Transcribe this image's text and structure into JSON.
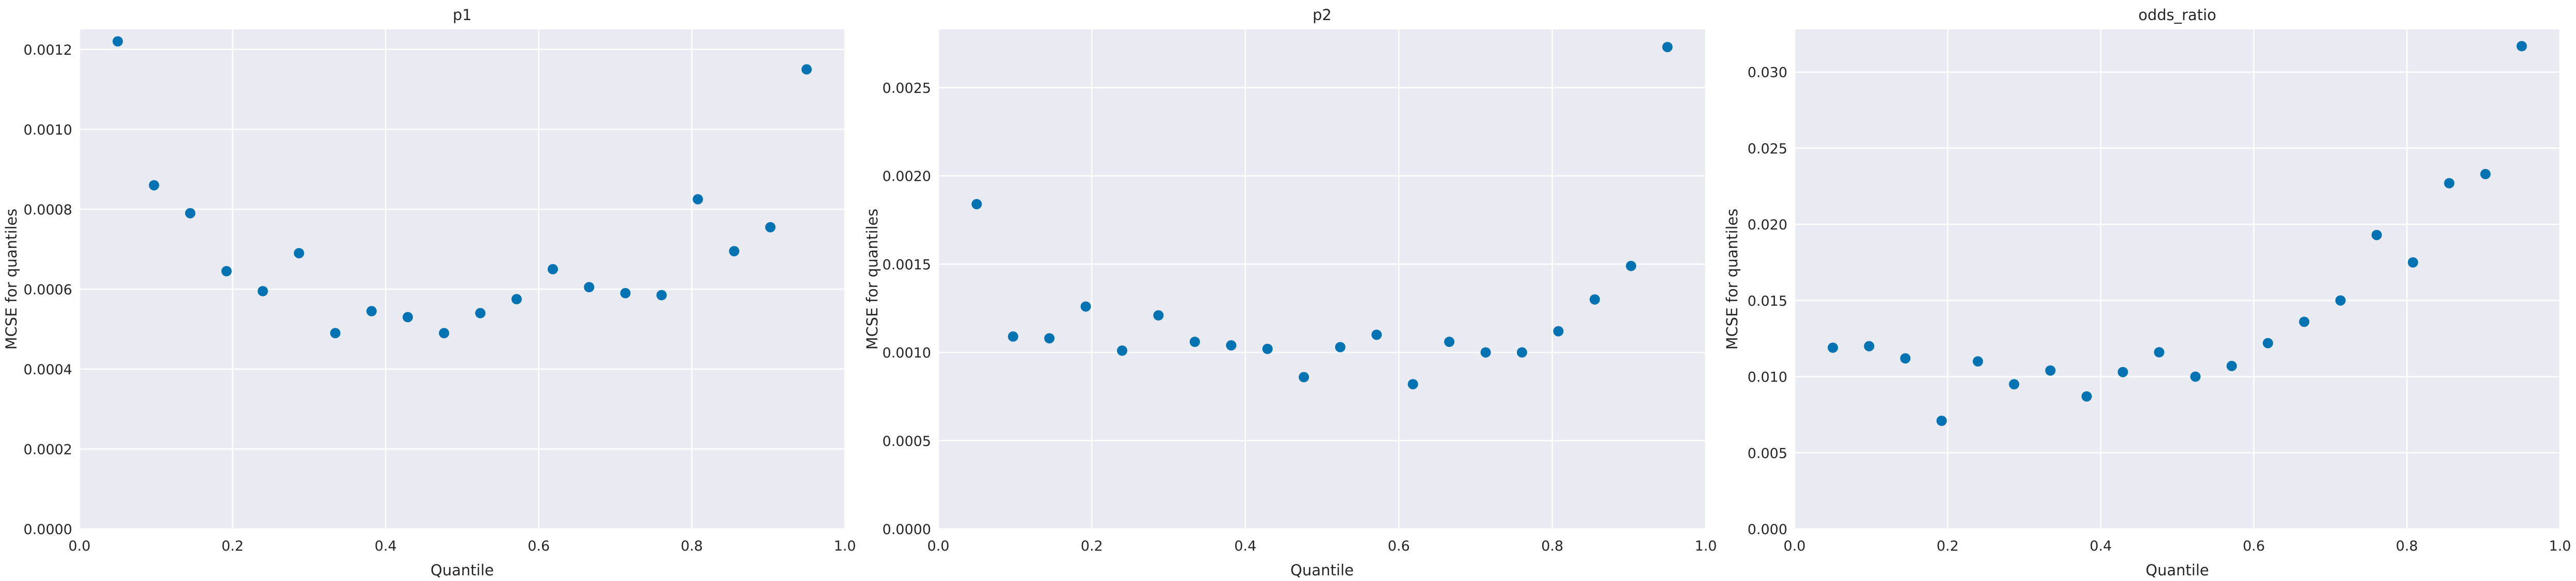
{
  "colors": {
    "axes_background": "#eaeaf2",
    "grid": "#ffffff",
    "marker": "#0173b2",
    "text": "#262626"
  },
  "chart_data": [
    {
      "type": "scatter",
      "title": "p1",
      "xlabel": "Quantile",
      "ylabel": "MCSE for quantiles",
      "xlim": [
        0,
        1
      ],
      "ylim": [
        0,
        0.00125
      ],
      "grid": true,
      "xticks": [
        0,
        0.2,
        0.4,
        0.6,
        0.8,
        1.0
      ],
      "xtick_labels": [
        "0.0",
        "0.2",
        "0.4",
        "0.6",
        "0.8",
        "1.0"
      ],
      "yticks": [
        0,
        0.0002,
        0.0004,
        0.0006,
        0.0008,
        0.001,
        0.0012
      ],
      "ytick_labels": [
        "0.0000",
        "0.0002",
        "0.0004",
        "0.0006",
        "0.0008",
        "0.0010",
        "0.0012"
      ],
      "x": [
        0.05,
        0.0974,
        0.1447,
        0.1921,
        0.2395,
        0.2868,
        0.3342,
        0.3816,
        0.4289,
        0.4763,
        0.5237,
        0.5711,
        0.6184,
        0.6658,
        0.7132,
        0.7605,
        0.8079,
        0.8553,
        0.9026,
        0.95
      ],
      "y": [
        0.00122,
        0.00086,
        0.00079,
        0.000645,
        0.000595,
        0.00069,
        0.00049,
        0.000545,
        0.00053,
        0.00049,
        0.00054,
        0.000575,
        0.00065,
        0.000605,
        0.00059,
        0.000585,
        0.000825,
        0.000695,
        0.000755,
        0.00115
      ]
    },
    {
      "type": "scatter",
      "title": "p2",
      "xlabel": "Quantile",
      "ylabel": "MCSE for quantiles",
      "xlim": [
        0,
        1
      ],
      "ylim": [
        0,
        0.00283
      ],
      "grid": true,
      "xticks": [
        0,
        0.2,
        0.4,
        0.6,
        0.8,
        1.0
      ],
      "xtick_labels": [
        "0.0",
        "0.2",
        "0.4",
        "0.6",
        "0.8",
        "1.0"
      ],
      "yticks": [
        0,
        0.0005,
        0.001,
        0.0015,
        0.002,
        0.0025
      ],
      "ytick_labels": [
        "0.0000",
        "0.0005",
        "0.0010",
        "0.0015",
        "0.0020",
        "0.0025"
      ],
      "x": [
        0.05,
        0.0974,
        0.1447,
        0.1921,
        0.2395,
        0.2868,
        0.3342,
        0.3816,
        0.4289,
        0.4763,
        0.5237,
        0.5711,
        0.6184,
        0.6658,
        0.7132,
        0.7605,
        0.8079,
        0.8553,
        0.9026,
        0.95
      ],
      "y": [
        0.00184,
        0.00109,
        0.00108,
        0.00126,
        0.00101,
        0.00121,
        0.00106,
        0.00104,
        0.00102,
        0.00086,
        0.00103,
        0.0011,
        0.00082,
        0.00106,
        0.001,
        0.001,
        0.00112,
        0.0013,
        0.00149,
        0.00273
      ]
    },
    {
      "type": "scatter",
      "title": "odds_ratio",
      "xlabel": "Quantile",
      "ylabel": "MCSE for quantiles",
      "xlim": [
        0,
        1
      ],
      "ylim": [
        0,
        0.0328
      ],
      "grid": true,
      "xticks": [
        0,
        0.2,
        0.4,
        0.6,
        0.8,
        1.0
      ],
      "xtick_labels": [
        "0.0",
        "0.2",
        "0.4",
        "0.6",
        "0.8",
        "1.0"
      ],
      "yticks": [
        0,
        0.005,
        0.01,
        0.015,
        0.02,
        0.025,
        0.03
      ],
      "ytick_labels": [
        "0.000",
        "0.005",
        "0.010",
        "0.015",
        "0.020",
        "0.025",
        "0.030"
      ],
      "x": [
        0.05,
        0.0974,
        0.1447,
        0.1921,
        0.2395,
        0.2868,
        0.3342,
        0.3816,
        0.4289,
        0.4763,
        0.5237,
        0.5711,
        0.6184,
        0.6658,
        0.7132,
        0.7605,
        0.8079,
        0.8553,
        0.9026,
        0.95
      ],
      "y": [
        0.0119,
        0.012,
        0.0112,
        0.0071,
        0.011,
        0.0095,
        0.0104,
        0.0087,
        0.0103,
        0.0116,
        0.01,
        0.0107,
        0.0122,
        0.0136,
        0.015,
        0.0193,
        0.0175,
        0.0227,
        0.0233,
        0.0317
      ]
    }
  ]
}
